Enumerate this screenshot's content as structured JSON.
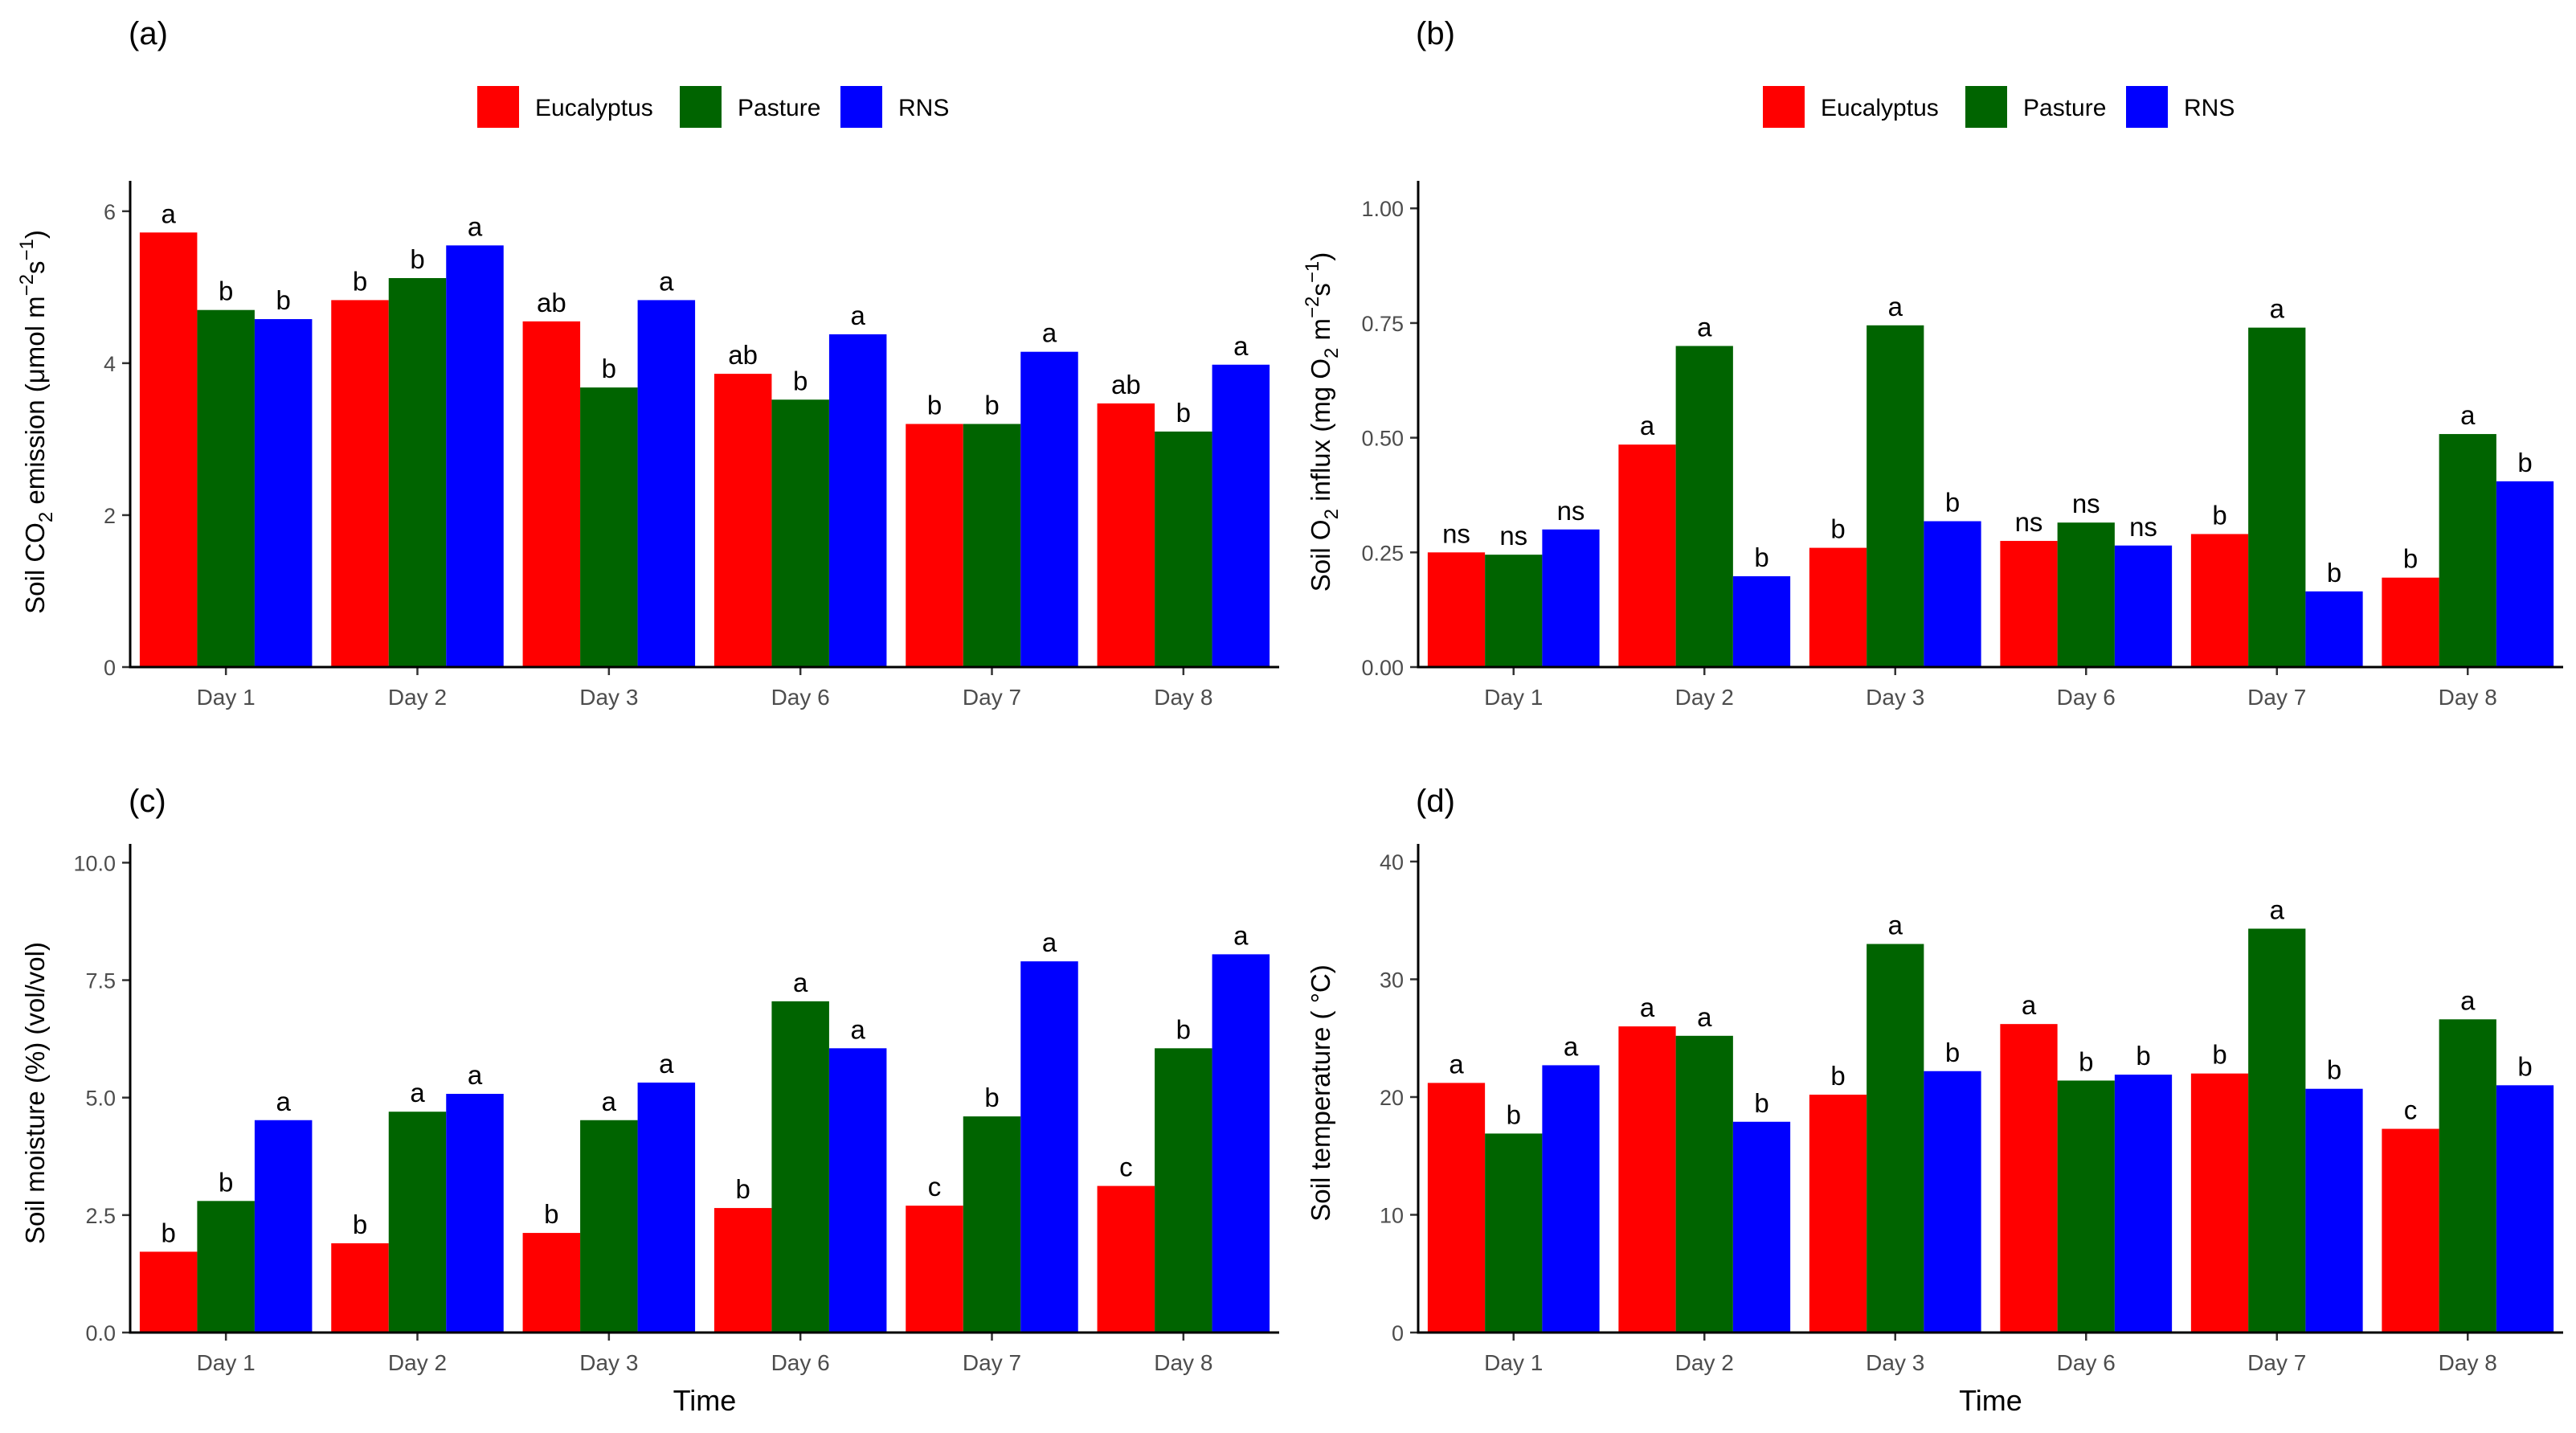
{
  "series": [
    {
      "name": "Eucalyptus",
      "color": "#ff0000"
    },
    {
      "name": "Pasture",
      "color": "#006400"
    },
    {
      "name": "RNS",
      "color": "#0000ff"
    }
  ],
  "chart_data": [
    {
      "type": "bar",
      "panel_label": "(a)",
      "title": "",
      "categories": [
        "Day 1",
        "Day 2",
        "Day 3",
        "Day 6",
        "Day 7",
        "Day 8"
      ],
      "series": [
        {
          "name": "Eucalyptus",
          "values": [
            5.72,
            4.83,
            4.55,
            3.86,
            3.2,
            3.47
          ],
          "labels": [
            "a",
            "b",
            "ab",
            "ab",
            "b",
            "ab"
          ]
        },
        {
          "name": "Pasture",
          "values": [
            4.7,
            5.12,
            3.68,
            3.52,
            3.2,
            3.1
          ],
          "labels": [
            "b",
            "b",
            "b",
            "b",
            "b",
            "b"
          ]
        },
        {
          "name": "RNS",
          "values": [
            4.58,
            5.55,
            4.83,
            4.38,
            4.15,
            3.98
          ],
          "labels": [
            "b",
            "a",
            "a",
            "a",
            "a",
            "a"
          ]
        }
      ],
      "ylim": [
        0,
        6.4
      ],
      "yticks": [
        0,
        2,
        4,
        6
      ],
      "ytick_labels": [
        "0",
        "2",
        "4",
        "6"
      ],
      "ylabel": "Soil CO2 emission (μmol m−2s−1)",
      "ylabel_parts": {
        "a": "Soil CO",
        "sub": "2",
        "b": " emission (μmol m",
        "sup1": "−2",
        "c": "s",
        "sup2": "−1",
        "d": ")"
      },
      "xlabel": ""
    },
    {
      "type": "bar",
      "panel_label": "(b)",
      "title": "",
      "categories": [
        "Day 1",
        "Day 2",
        "Day 3",
        "Day 6",
        "Day 7",
        "Day 8"
      ],
      "series": [
        {
          "name": "Eucalyptus",
          "values": [
            0.25,
            0.485,
            0.26,
            0.275,
            0.29,
            0.195
          ],
          "labels": [
            "ns",
            "a",
            "b",
            "ns",
            "b",
            "b"
          ]
        },
        {
          "name": "Pasture",
          "values": [
            0.245,
            0.7,
            0.745,
            0.315,
            0.74,
            0.508
          ],
          "labels": [
            "ns",
            "a",
            "a",
            "ns",
            "a",
            "a"
          ]
        },
        {
          "name": "RNS",
          "values": [
            0.3,
            0.198,
            0.318,
            0.265,
            0.165,
            0.405
          ],
          "labels": [
            "ns",
            "b",
            "b",
            "ns",
            "b",
            "b"
          ]
        }
      ],
      "ylim": [
        0,
        1.06
      ],
      "yticks": [
        0,
        0.25,
        0.5,
        0.75,
        1.0
      ],
      "ytick_labels": [
        "0.00",
        "0.25",
        "0.50",
        "0.75",
        "1.00"
      ],
      "ylabel": "Soil O2 influx (mg O2 m−2s−1)",
      "ylabel_parts": {
        "a": "Soil O",
        "sub": "2",
        "b": " influx (mg O",
        "sub2": "2",
        "c": " m",
        "sup1": "−2",
        "d": "s",
        "sup2": "−1",
        "e": ")"
      },
      "xlabel": ""
    },
    {
      "type": "bar",
      "panel_label": "(c)",
      "title": "",
      "categories": [
        "Day 1",
        "Day 2",
        "Day 3",
        "Day 6",
        "Day 7",
        "Day 8"
      ],
      "series": [
        {
          "name": "Eucalyptus",
          "values": [
            1.72,
            1.9,
            2.12,
            2.65,
            2.7,
            3.12
          ],
          "labels": [
            "b",
            "b",
            "b",
            "b",
            "c",
            "c"
          ]
        },
        {
          "name": "Pasture",
          "values": [
            2.8,
            4.7,
            4.52,
            7.05,
            4.6,
            6.05
          ],
          "labels": [
            "b",
            "a",
            "a",
            "a",
            "b",
            "b"
          ]
        },
        {
          "name": "RNS",
          "values": [
            4.52,
            5.08,
            5.32,
            6.05,
            7.9,
            8.05
          ],
          "labels": [
            "a",
            "a",
            "a",
            "a",
            "a",
            "a"
          ]
        }
      ],
      "ylim": [
        0,
        10.4
      ],
      "yticks": [
        0,
        2.5,
        5,
        7.5,
        10
      ],
      "ytick_labels": [
        "0.0",
        "2.5",
        "5.0",
        "7.5",
        "10.0"
      ],
      "ylabel": "Soil moisture (%) (vol/vol)",
      "xlabel": "Time"
    },
    {
      "type": "bar",
      "panel_label": "(d)",
      "title": "",
      "categories": [
        "Day 1",
        "Day 2",
        "Day 3",
        "Day 6",
        "Day 7",
        "Day 8"
      ],
      "series": [
        {
          "name": "Eucalyptus",
          "values": [
            21.2,
            26.0,
            20.2,
            26.2,
            22.0,
            17.3
          ],
          "labels": [
            "a",
            "a",
            "b",
            "a",
            "b",
            "c"
          ]
        },
        {
          "name": "Pasture",
          "values": [
            16.9,
            25.2,
            33.0,
            21.4,
            34.3,
            26.6
          ],
          "labels": [
            "b",
            "a",
            "a",
            "b",
            "a",
            "a"
          ]
        },
        {
          "name": "RNS",
          "values": [
            22.7,
            17.9,
            22.2,
            21.9,
            20.7,
            21.0
          ],
          "labels": [
            "a",
            "b",
            "b",
            "b",
            "b",
            "b"
          ]
        }
      ],
      "ylim": [
        0,
        41.5
      ],
      "yticks": [
        0,
        10,
        20,
        30,
        40
      ],
      "ytick_labels": [
        "0",
        "10",
        "20",
        "30",
        "40"
      ],
      "ylabel": "Soil temperature ( °C)",
      "xlabel": "Time"
    }
  ]
}
